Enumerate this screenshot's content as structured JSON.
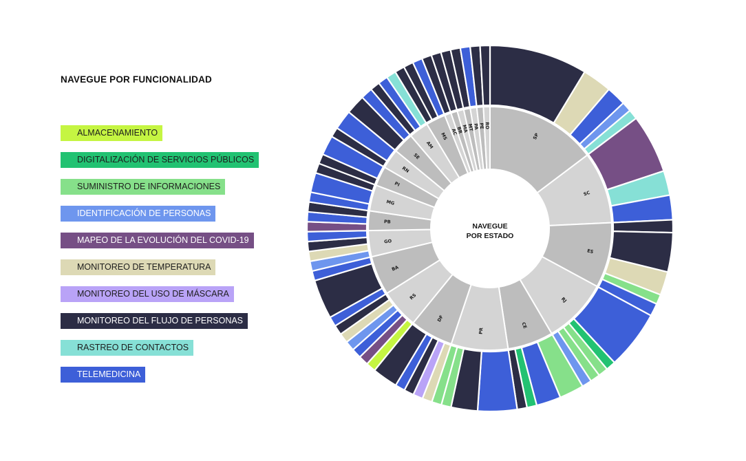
{
  "legend": {
    "title": "NAVEGUE POR FUNCIONALIDAD",
    "items": [
      {
        "key": "alm",
        "label": "ALMACENAMIENTO",
        "color": "#c5f542",
        "light_text": false
      },
      {
        "key": "dig",
        "label": "DIGITALIZACIÓN DE SERVICIOS PÚBLICOS",
        "color": "#22c272",
        "light_text": false
      },
      {
        "key": "sum",
        "label": "SUMINISTRO DE INFORMACIONES",
        "color": "#86e08a",
        "light_text": false
      },
      {
        "key": "ide",
        "label": "IDENTIFICACIÓN DE PERSONAS",
        "color": "#6e96ee",
        "light_text": true
      },
      {
        "key": "map",
        "label": "MAPEO DE LA EVOLUCIÓN DEL COVID-19",
        "color": "#764f85",
        "light_text": true
      },
      {
        "key": "tem",
        "label": "MONITOREO DE TEMPERATURA",
        "color": "#ddd9b5",
        "light_text": false
      },
      {
        "key": "mas",
        "label": "MONITOREO DEL USO DE MÁSCARA",
        "color": "#b9a3f7",
        "light_text": false
      },
      {
        "key": "flu",
        "label": "MONITOREO DEL FLUJO DE PERSONAS",
        "color": "#2c2d45",
        "light_text": true
      },
      {
        "key": "ras",
        "label": "RASTREO DE CONTACTOS",
        "color": "#86e0d6",
        "light_text": false
      },
      {
        "key": "tel",
        "label": "TELEMEDICINA",
        "color": "#3d5fd8",
        "light_text": true
      }
    ]
  },
  "center": {
    "line1": "NAVEGUE",
    "line2": "POR ESTADO"
  },
  "chart_data": {
    "type": "sunburst",
    "inner_ring_color_a": "#bdbdbd",
    "inner_ring_color_b": "#d4d4d4",
    "states": [
      {
        "label": "SP",
        "children": [
          [
            "flu",
            10
          ],
          [
            "tem",
            3
          ],
          [
            "tel",
            2
          ],
          [
            "ide",
            1
          ],
          [
            "ras",
            1
          ]
        ]
      },
      {
        "label": "SC",
        "children": [
          [
            "map",
            6
          ],
          [
            "ras",
            2.5
          ],
          [
            "tel",
            2.5
          ]
        ]
      },
      {
        "label": "ES",
        "children": [
          [
            "flu",
            1.3
          ],
          [
            "flu",
            4
          ],
          [
            "tem",
            2.4
          ],
          [
            "sum",
            1
          ],
          [
            "tel",
            1.3
          ]
        ]
      },
      {
        "label": "RJ",
        "children": [
          [
            "tel",
            6
          ],
          [
            "dig",
            1
          ],
          [
            "sum",
            1
          ],
          [
            "sum",
            1
          ],
          [
            "ide",
            1
          ]
        ]
      },
      {
        "label": "CE",
        "children": [
          [
            "sum",
            2.5
          ],
          [
            "tel",
            2.5
          ],
          [
            "dig",
            1
          ],
          [
            "flu",
            1
          ]
        ]
      },
      {
        "label": "PR",
        "children": [
          [
            "tel",
            4
          ],
          [
            "flu",
            2.7
          ],
          [
            "sum",
            1
          ],
          [
            "sum",
            1
          ]
        ]
      },
      {
        "label": "DF",
        "children": [
          [
            "tem",
            1
          ],
          [
            "mas",
            1
          ],
          [
            "flu",
            1
          ],
          [
            "tel",
            1
          ],
          [
            "flu",
            2.6
          ]
        ]
      },
      {
        "label": "RS",
        "children": [
          [
            "alm",
            1
          ],
          [
            "map",
            1
          ],
          [
            "tel",
            1
          ],
          [
            "ide",
            1
          ],
          [
            "tem",
            1
          ],
          [
            "flu",
            1
          ]
        ]
      },
      {
        "label": "BA",
        "children": [
          [
            "tel",
            1
          ],
          [
            "flu",
            4
          ],
          [
            "tel",
            1
          ]
        ]
      },
      {
        "label": "GO",
        "children": [
          [
            "ide",
            1
          ],
          [
            "tem",
            1
          ],
          [
            "flu",
            1
          ],
          [
            "tel",
            1
          ]
        ]
      },
      {
        "label": "PB",
        "children": [
          [
            "map",
            1
          ],
          [
            "tel",
            1
          ],
          [
            "flu",
            1
          ]
        ]
      },
      {
        "label": "MG",
        "children": [
          [
            "tel",
            1
          ],
          [
            "tel",
            2
          ],
          [
            "flu",
            1
          ]
        ]
      },
      {
        "label": "PI",
        "children": [
          [
            "flu",
            1
          ],
          [
            "tel",
            2
          ]
        ]
      },
      {
        "label": "RN",
        "children": [
          [
            "flu",
            1
          ],
          [
            "tel",
            2
          ]
        ]
      },
      {
        "label": "SE",
        "children": [
          [
            "flu",
            2
          ],
          [
            "tel",
            1.2
          ]
        ]
      },
      {
        "label": "AM",
        "children": [
          [
            "flu",
            1
          ],
          [
            "tel",
            1
          ],
          [
            "ras",
            1
          ]
        ]
      },
      {
        "label": "MS",
        "children": [
          [
            "flu",
            1
          ],
          [
            "flu",
            1
          ],
          [
            "tel",
            1
          ]
        ]
      },
      {
        "label": "AC",
        "children": [
          [
            "flu",
            1
          ]
        ]
      },
      {
        "label": "BR",
        "children": [
          [
            "flu",
            1
          ]
        ]
      },
      {
        "label": "MA",
        "children": [
          [
            "flu",
            1
          ]
        ]
      },
      {
        "label": "MT",
        "children": [
          [
            "flu",
            1
          ]
        ]
      },
      {
        "label": "PA",
        "children": [
          [
            "tel",
            1
          ]
        ]
      },
      {
        "label": "PE",
        "children": [
          [
            "flu",
            1
          ]
        ]
      },
      {
        "label": "RO",
        "children": [
          [
            "flu",
            1
          ]
        ]
      }
    ]
  }
}
